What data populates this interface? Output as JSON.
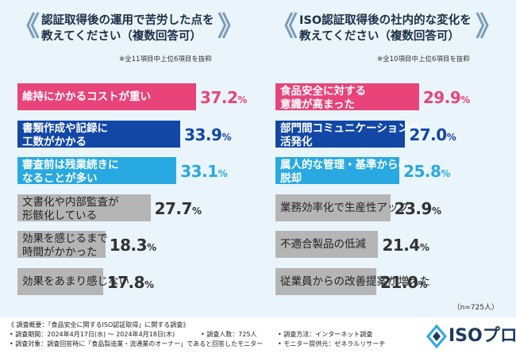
{
  "chart_data": [
    {
      "type": "bar",
      "title": "認証取得後の運用で苦労した点を教えてください（複数回答可）",
      "title_lines": [
        "認証取得後の運用で苦労した点を",
        "教えてください（複数回答可）"
      ],
      "note": "※全11項目中上位6項目を抜粋",
      "unit": "%",
      "categories": [
        [
          "維持にかかるコストが重い"
        ],
        [
          "書類作成や記録に",
          "工数がかかる"
        ],
        [
          "審査前は残業続きに",
          "なることが多い"
        ],
        [
          "文書化や内部監査が",
          "形骸化している"
        ],
        [
          "効果を感じるまで",
          "時間がかかった"
        ],
        [
          "効果をあまり感じない"
        ]
      ],
      "values": [
        37.2,
        33.9,
        33.1,
        27.7,
        18.3,
        17.8
      ],
      "value_text": [
        "37.2",
        "33.9",
        "33.1",
        "27.7",
        "18.3",
        "17.8"
      ],
      "colors": [
        "#e8447a",
        "#1247a6",
        "#29a9e1",
        "#b5b5b5",
        "#b5b5b5",
        "#b5b5b5"
      ],
      "value_colors": [
        "#e8447a",
        "#1247a6",
        "#29a9e1",
        "#333333",
        "#333333",
        "#333333"
      ]
    },
    {
      "type": "bar",
      "title": "ISO認証取得後の社内的な変化を教えてください（複数回答可）",
      "title_lines": [
        "ISO認証取得後の社内的な変化を",
        "教えてください（複数回答可）"
      ],
      "note": "※全10項目中上位6項目を抜粋",
      "unit": "%",
      "categories": [
        [
          "食品安全に対する",
          "意識が高まった"
        ],
        [
          "部門間コミュニケーションの",
          "活発化"
        ],
        [
          "属人的な管理・基準からの",
          "脱却"
        ],
        [
          "業務効率化で生産性アップ"
        ],
        [
          "不適合製品の低減"
        ],
        [
          "従業員からの改善提案が増えた"
        ]
      ],
      "values": [
        29.9,
        27.0,
        25.8,
        23.9,
        21.4,
        21.0
      ],
      "value_text": [
        "29.9",
        "27.0",
        "25.8",
        "23.9",
        "21.4",
        "21.0"
      ],
      "colors": [
        "#e8447a",
        "#1247a6",
        "#29a9e1",
        "#b5b5b5",
        "#b5b5b5",
        "#b5b5b5"
      ],
      "value_colors": [
        "#e8447a",
        "#1247a6",
        "#29a9e1",
        "#333333",
        "#333333",
        "#333333"
      ]
    }
  ],
  "n_label": "（n=725人）",
  "footer": {
    "line1": "《 調査概要：「食品安全に関するISO認証取得」に関する調査》",
    "period": "• 調査期間：2024年4月17日(水) ～ 2024年4月18日(木)",
    "respondents": "• 調査人数：725人",
    "method": "• 調査方法：インターネット調査",
    "target": "• 調査対象：調査回答時に「食品製造業・流通業のオーナー」であると回答したモニター",
    "provider": "• モニター提供元：ゼネラルリサーチ"
  },
  "logo": "ISOプロ"
}
